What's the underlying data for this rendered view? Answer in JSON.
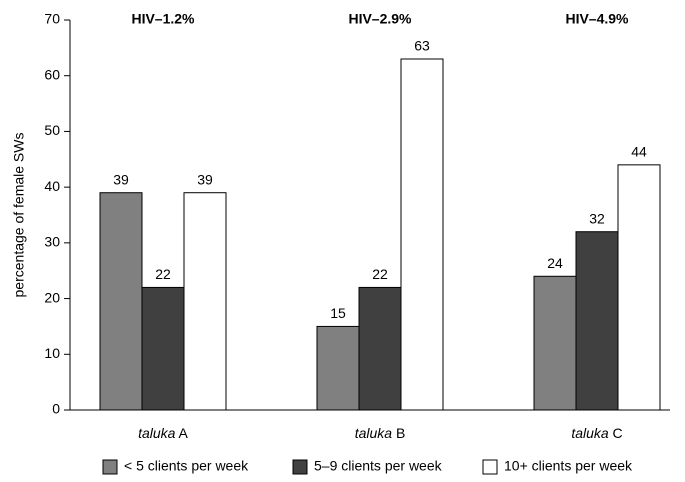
{
  "chart_data": {
    "type": "bar",
    "y_label": "percentage of female SWs",
    "categories": [
      "taluka A",
      "taluka B",
      "taluka C"
    ],
    "annotations": [
      "HIV–1.2%",
      "HIV–2.9%",
      "HIV–4.9%"
    ],
    "series": [
      {
        "name": "< 5 clients per week",
        "color": "#808080",
        "values": [
          39,
          15,
          24
        ]
      },
      {
        "name": "5–9 clients per week",
        "color": "#404040",
        "values": [
          22,
          22,
          32
        ]
      },
      {
        "name": "10+ clients per week",
        "color": "#ffffff",
        "values": [
          39,
          63,
          44
        ]
      }
    ],
    "ylim": [
      0,
      70
    ],
    "yticks": [
      0,
      10,
      20,
      30,
      40,
      50,
      60,
      70
    ],
    "grid": false,
    "legend": "bottom"
  }
}
